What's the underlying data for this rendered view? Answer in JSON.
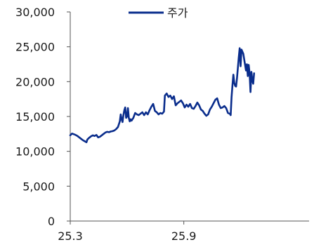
{
  "chart_data": {
    "type": "line",
    "title": "",
    "xlabel": "",
    "ylabel": "",
    "ylim": [
      0,
      30000
    ],
    "y_ticks": [
      "0",
      "5,000",
      "10,000",
      "15,000",
      "20,000",
      "25,000",
      "30,000"
    ],
    "y_tick_values": [
      0,
      5000,
      10000,
      15000,
      20000,
      25000,
      30000
    ],
    "x_ticks": [
      {
        "label": "25.3",
        "t": 0
      },
      {
        "label": "25.9",
        "t": 126
      }
    ],
    "xlim": [
      0,
      265
    ],
    "grid": false,
    "legend_position": "top-center",
    "series": [
      {
        "name": "주가",
        "color": "#0a2d8c",
        "points": [
          [
            0,
            12300
          ],
          [
            2,
            12550
          ],
          [
            4,
            12450
          ],
          [
            6,
            12350
          ],
          [
            8,
            12200
          ],
          [
            10,
            12000
          ],
          [
            12,
            11800
          ],
          [
            14,
            11600
          ],
          [
            16,
            11450
          ],
          [
            18,
            11300
          ],
          [
            19,
            11700
          ],
          [
            21,
            11950
          ],
          [
            23,
            12150
          ],
          [
            25,
            12300
          ],
          [
            27,
            12200
          ],
          [
            29,
            12350
          ],
          [
            31,
            12000
          ],
          [
            33,
            12100
          ],
          [
            35,
            12300
          ],
          [
            37,
            12500
          ],
          [
            39,
            12700
          ],
          [
            41,
            12800
          ],
          [
            43,
            12750
          ],
          [
            45,
            12850
          ],
          [
            47,
            12900
          ],
          [
            49,
            13000
          ],
          [
            51,
            13200
          ],
          [
            53,
            13500
          ],
          [
            55,
            14300
          ],
          [
            56,
            15300
          ],
          [
            57,
            14600
          ],
          [
            58,
            14200
          ],
          [
            59,
            15200
          ],
          [
            60,
            15900
          ],
          [
            61,
            16300
          ],
          [
            62,
            14800
          ],
          [
            63,
            15000
          ],
          [
            64,
            16200
          ],
          [
            65,
            14800
          ],
          [
            66,
            14300
          ],
          [
            67,
            14600
          ],
          [
            68,
            14400
          ],
          [
            70,
            14800
          ],
          [
            72,
            15500
          ],
          [
            74,
            15300
          ],
          [
            76,
            15200
          ],
          [
            78,
            15400
          ],
          [
            80,
            15600
          ],
          [
            82,
            15200
          ],
          [
            84,
            15600
          ],
          [
            86,
            15300
          ],
          [
            88,
            15900
          ],
          [
            90,
            16400
          ],
          [
            92,
            16800
          ],
          [
            94,
            15800
          ],
          [
            96,
            15600
          ],
          [
            98,
            15300
          ],
          [
            100,
            15500
          ],
          [
            102,
            15400
          ],
          [
            104,
            15700
          ],
          [
            105,
            18000
          ],
          [
            107,
            18300
          ],
          [
            109,
            17800
          ],
          [
            111,
            18000
          ],
          [
            113,
            17500
          ],
          [
            115,
            17900
          ],
          [
            117,
            16600
          ],
          [
            119,
            16900
          ],
          [
            121,
            17100
          ],
          [
            123,
            17300
          ],
          [
            125,
            16900
          ],
          [
            127,
            16300
          ],
          [
            129,
            16700
          ],
          [
            131,
            16400
          ],
          [
            133,
            16800
          ],
          [
            135,
            16200
          ],
          [
            137,
            16100
          ],
          [
            139,
            16500
          ],
          [
            141,
            17000
          ],
          [
            143,
            16600
          ],
          [
            145,
            16000
          ],
          [
            147,
            15800
          ],
          [
            149,
            15400
          ],
          [
            151,
            15100
          ],
          [
            153,
            15300
          ],
          [
            155,
            16000
          ],
          [
            157,
            16400
          ],
          [
            159,
            16900
          ],
          [
            161,
            17400
          ],
          [
            163,
            17600
          ],
          [
            165,
            16700
          ],
          [
            167,
            16200
          ],
          [
            169,
            16300
          ],
          [
            171,
            16500
          ],
          [
            173,
            16200
          ],
          [
            175,
            15500
          ],
          [
            177,
            15400
          ],
          [
            178,
            15200
          ],
          [
            179,
            17800
          ],
          [
            180,
            19500
          ],
          [
            181,
            21000
          ],
          [
            182,
            19800
          ],
          [
            183,
            19400
          ],
          [
            184,
            19300
          ],
          [
            185,
            20500
          ],
          [
            186,
            22000
          ],
          [
            187,
            23500
          ],
          [
            188,
            24800
          ],
          [
            189,
            22200
          ],
          [
            190,
            24600
          ],
          [
            191,
            24300
          ],
          [
            192,
            24000
          ],
          [
            193,
            23200
          ],
          [
            194,
            22400
          ],
          [
            195,
            21600
          ],
          [
            196,
            22500
          ],
          [
            197,
            20800
          ],
          [
            198,
            22400
          ],
          [
            199,
            21200
          ],
          [
            200,
            18500
          ],
          [
            201,
            21400
          ],
          [
            202,
            20200
          ],
          [
            203,
            19700
          ],
          [
            204,
            21200
          ]
        ]
      }
    ]
  }
}
